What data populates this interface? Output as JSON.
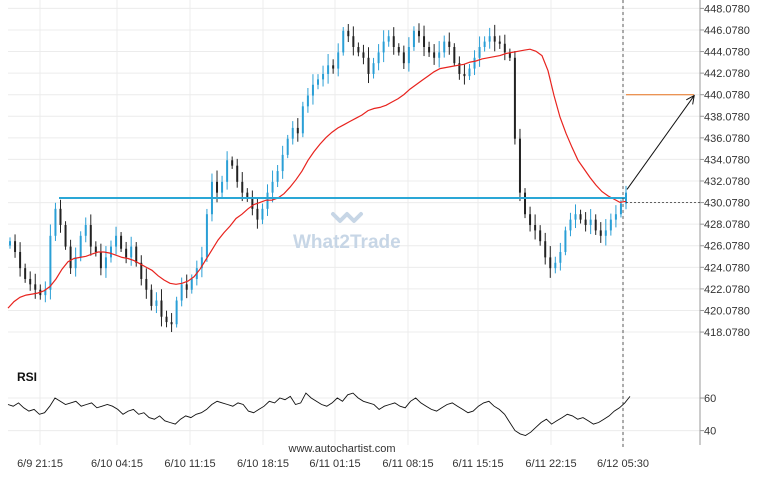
{
  "chart_data": {
    "type": "candlestick",
    "price_axis": {
      "ticks": [
        "448.0780",
        "446.0780",
        "444.0780",
        "442.0780",
        "440.0780",
        "438.0780",
        "436.0780",
        "434.0780",
        "432.0780",
        "430.0780",
        "428.0780",
        "426.0780",
        "424.0780",
        "422.0780",
        "420.0780",
        "418.0780"
      ],
      "range": [
        416.6,
        448.3
      ]
    },
    "time_axis": {
      "ticks": [
        "6/9 21:15",
        "6/10 04:15",
        "6/10 11:15",
        "6/10 18:15",
        "6/11 01:15",
        "6/11 08:15",
        "6/11 15:15",
        "6/11 22:15",
        "6/12 05:30"
      ]
    },
    "support_level": 430.5,
    "current_level": 430.078,
    "target_level": 440.078,
    "forecast_arrow": {
      "from": [
        30,
        431.3
      ],
      "to": [
        1.1,
        440.0
      ]
    },
    "price_series": [
      426.5,
      425.5,
      424,
      423,
      422.5,
      422,
      421.5,
      422,
      427,
      429.5,
      428,
      426,
      424,
      425,
      427,
      428,
      426,
      425.5,
      424,
      425,
      426,
      427,
      425.8,
      425,
      426,
      424.5,
      423,
      422,
      420.5,
      421,
      419.5,
      419,
      418.8,
      421,
      422.5,
      422,
      423,
      424,
      425,
      429,
      432,
      431,
      432,
      434,
      433.5,
      432,
      431,
      430.5,
      429.5,
      428.5,
      429.5,
      431,
      432,
      433,
      434.5,
      436,
      437,
      436.5,
      439,
      440,
      441,
      441.5,
      442,
      442.8,
      442.5,
      444,
      446,
      445.5,
      444.5,
      444,
      443.5,
      442,
      443,
      444,
      445,
      445.5,
      444.5,
      444,
      443,
      444.5,
      446,
      445.5,
      444.5,
      444,
      443.5,
      444,
      445,
      444.5,
      443,
      442,
      441.8,
      442.5,
      443.5,
      444.5,
      445,
      445.5,
      445,
      444.8,
      444,
      443.5,
      436,
      431,
      429,
      428,
      427.5,
      426.5,
      425,
      424,
      424.5,
      425.5,
      427.5,
      428.5,
      429,
      428.5,
      428,
      428.5,
      427.5,
      427,
      427.5,
      428.5,
      429,
      430,
      431
    ],
    "ma_series": [
      420.3,
      420.9,
      421.3,
      421.5,
      421.6,
      421.7,
      421.9,
      422.3,
      423,
      423.9,
      424.6,
      424.9,
      425,
      425.1,
      425.3,
      425.5,
      425.5,
      425.4,
      425.2,
      425,
      424.9,
      424.7,
      424.4,
      424.1,
      423.8,
      423.3,
      422.9,
      422.6,
      422.5,
      422.6,
      422.8,
      423.2,
      423.9,
      424.8,
      425.7,
      426.6,
      427.3,
      427.9,
      428.6,
      429,
      429.5,
      429.9,
      430.1,
      430.3,
      430.3,
      430.5,
      430.9,
      431.5,
      432.2,
      433,
      434,
      434.8,
      435.5,
      436.1,
      436.6,
      437,
      437.3,
      437.6,
      437.9,
      438.2,
      438.6,
      438.8,
      438.9,
      439.1,
      439.4,
      439.7,
      440.1,
      440.6,
      441,
      441.4,
      441.8,
      442.2,
      442.5,
      442.6,
      442.7,
      442.8,
      442.9,
      443.1,
      443.2,
      443.4,
      443.5,
      443.6,
      443.7,
      443.9,
      444,
      444.1,
      444.2,
      444.3,
      444.1,
      443.7,
      442.3,
      440,
      438,
      436.5,
      435.2,
      434,
      433.2,
      432.4,
      431.7,
      431.1,
      430.7,
      430.4,
      430.1,
      430.2
    ],
    "rsi": {
      "label": "RSI",
      "ticks": [
        "60",
        "40"
      ],
      "range": [
        33,
        68
      ],
      "series": [
        56,
        55,
        57,
        54,
        52,
        53,
        50,
        51,
        55,
        60,
        58,
        56,
        57,
        58,
        55,
        56,
        57,
        54,
        55,
        56,
        55,
        53,
        50,
        52,
        53,
        50,
        51,
        48,
        47,
        49,
        46,
        45,
        44,
        47,
        49,
        48,
        50,
        51,
        53,
        56,
        58,
        57,
        56,
        55,
        57,
        56,
        52,
        51,
        53,
        55,
        58,
        57,
        60,
        59,
        61,
        56,
        57,
        63,
        60,
        58,
        56,
        55,
        57,
        60,
        58,
        62,
        63,
        60,
        58,
        57,
        56,
        53,
        55,
        56,
        57,
        55,
        54,
        58,
        60,
        57,
        55,
        53,
        52,
        54,
        56,
        57,
        55,
        53,
        51,
        52,
        55,
        57,
        58,
        55,
        53,
        50,
        45,
        40,
        38,
        37,
        39,
        42,
        45,
        47,
        44,
        46,
        48,
        50,
        49,
        47,
        48,
        46,
        44,
        45,
        47,
        49,
        52,
        54,
        57,
        61
      ]
    },
    "watermark": "What2Trade",
    "footer": "www.autochartist.com"
  }
}
